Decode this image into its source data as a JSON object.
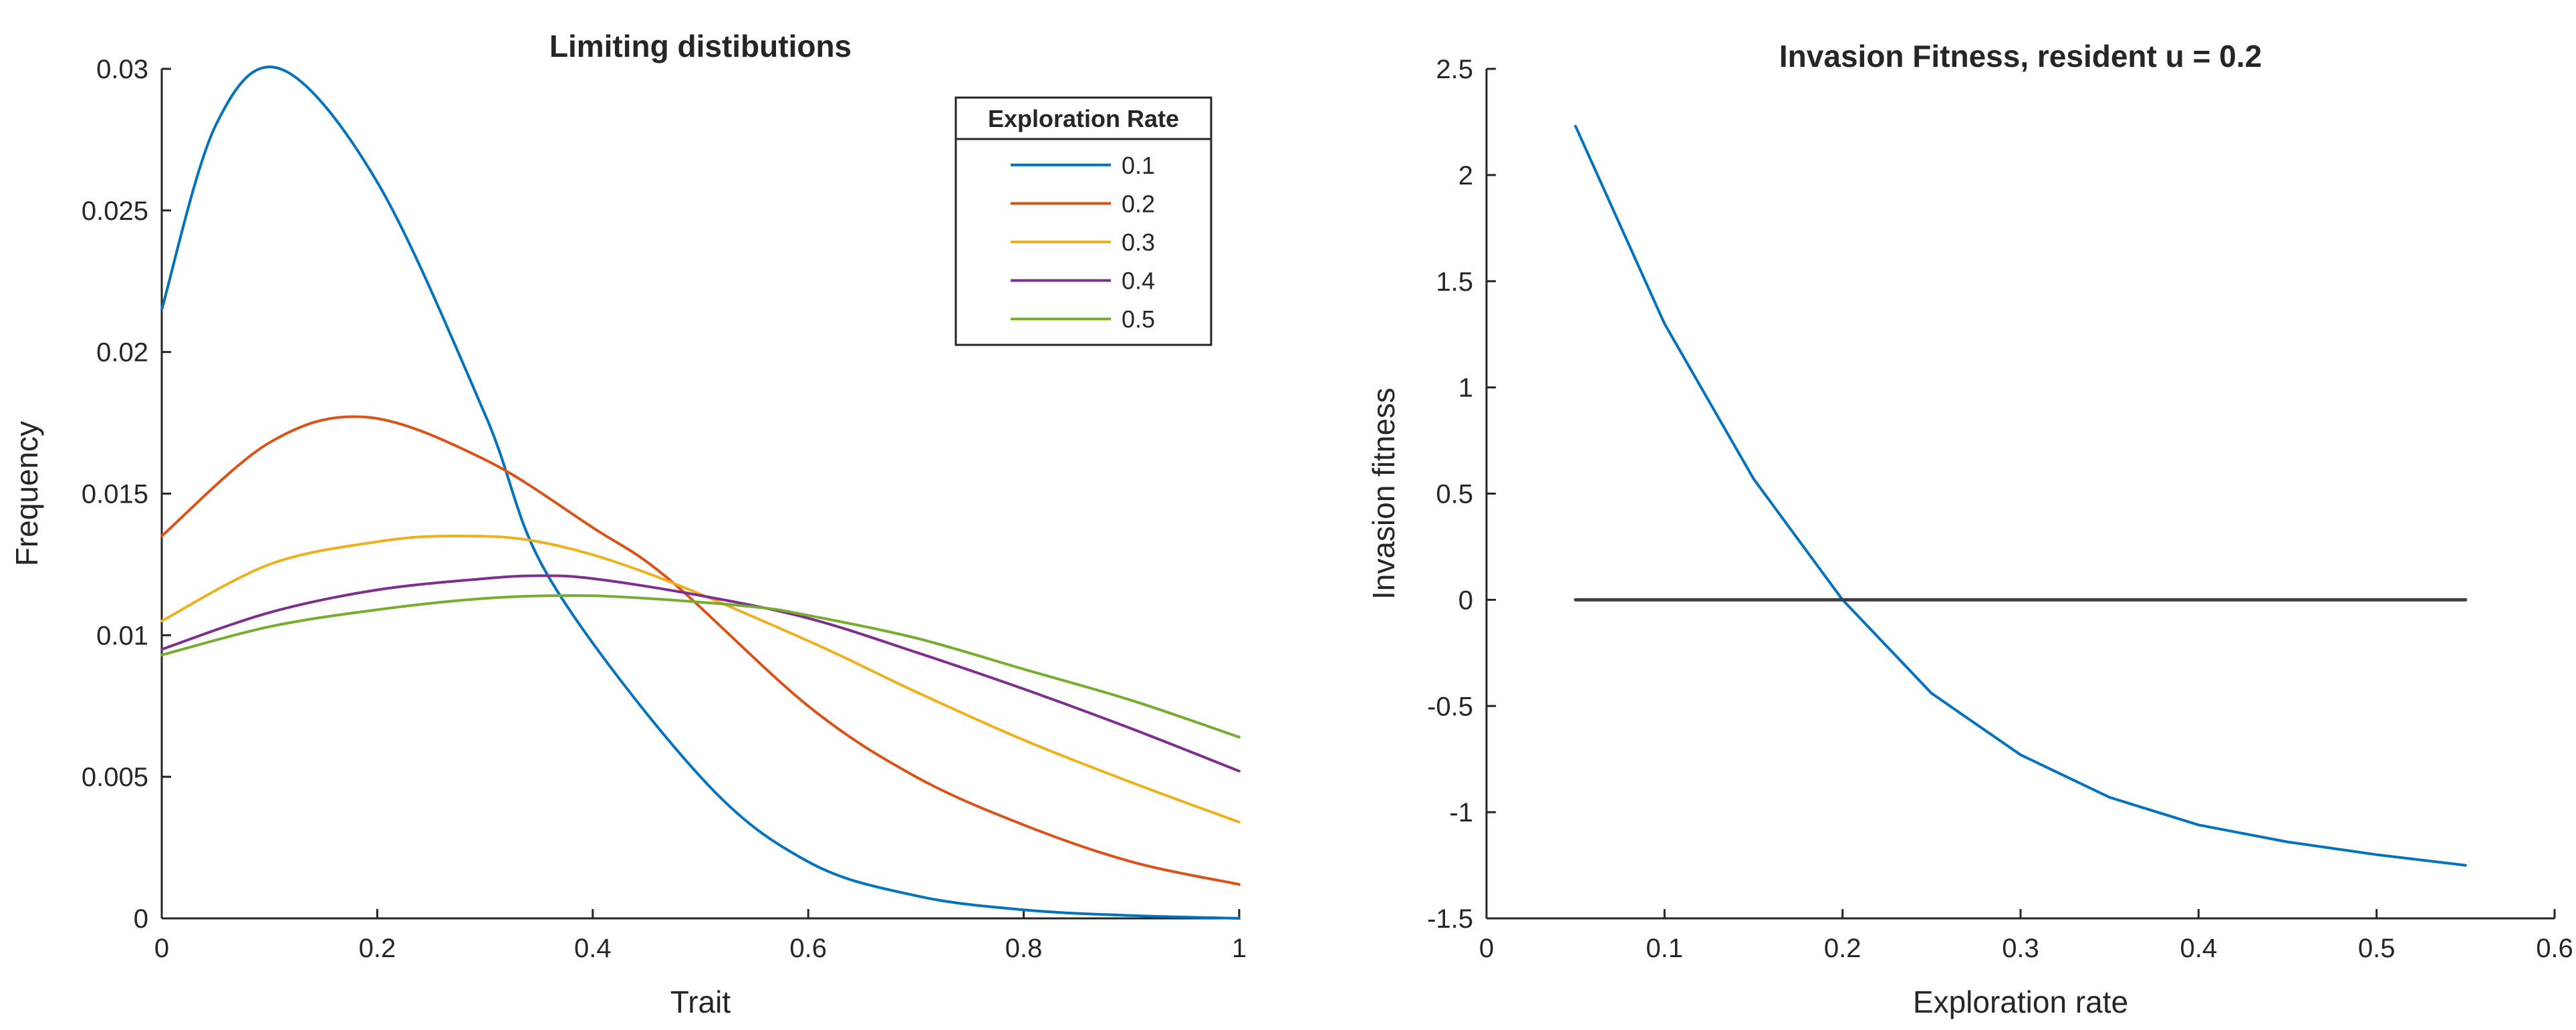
{
  "chart_data": [
    {
      "type": "line",
      "title": "Limiting distibutions",
      "xlabel": "Trait",
      "ylabel": "Frequency",
      "xlim": [
        0,
        1
      ],
      "ylim": [
        0,
        0.03
      ],
      "xticks": [
        0,
        0.2,
        0.4,
        0.6,
        0.8,
        1
      ],
      "xtick_labels": [
        "0",
        "0.2",
        "0.4",
        "0.6",
        "0.8",
        "1"
      ],
      "yticks": [
        0,
        0.005,
        0.01,
        0.015,
        0.02,
        0.025,
        0.03
      ],
      "ytick_labels": [
        "0",
        "0.005",
        "0.01",
        "0.015",
        "0.02",
        "0.025",
        "0.03"
      ],
      "legend": {
        "title": "Exploration Rate",
        "location": "top-right"
      },
      "series": [
        {
          "name": "0.1",
          "color": "#0072BD",
          "x": [
            0,
            0.05,
            0.11,
            0.2,
            0.3,
            0.36,
            0.5,
            0.6,
            0.7,
            0.8,
            0.9,
            1.0
          ],
          "y": [
            0.0215,
            0.028,
            0.03,
            0.026,
            0.0178,
            0.012,
            0.005,
            0.002,
            0.0008,
            0.0003,
            0.0001,
            0.0
          ]
        },
        {
          "name": "0.2",
          "color": "#D95319",
          "x": [
            0,
            0.1,
            0.19,
            0.3,
            0.4,
            0.47,
            0.6,
            0.7,
            0.8,
            0.9,
            1.0
          ],
          "y": [
            0.0135,
            0.0168,
            0.0177,
            0.0162,
            0.0138,
            0.012,
            0.0075,
            0.005,
            0.0033,
            0.002,
            0.0012
          ]
        },
        {
          "name": "0.3",
          "color": "#EDB120",
          "x": [
            0,
            0.1,
            0.2,
            0.27,
            0.35,
            0.45,
            0.6,
            0.7,
            0.8,
            0.9,
            1.0
          ],
          "y": [
            0.0105,
            0.0125,
            0.0133,
            0.0135,
            0.0133,
            0.0122,
            0.0098,
            0.008,
            0.0063,
            0.0048,
            0.0034
          ]
        },
        {
          "name": "0.4",
          "color": "#7E2F8E",
          "x": [
            0,
            0.1,
            0.2,
            0.3,
            0.35,
            0.4,
            0.5,
            0.6,
            0.7,
            0.8,
            0.9,
            1.0
          ],
          "y": [
            0.0095,
            0.0108,
            0.0116,
            0.012,
            0.0121,
            0.012,
            0.0114,
            0.0106,
            0.0094,
            0.0081,
            0.0067,
            0.0052
          ]
        },
        {
          "name": "0.5",
          "color": "#77AC30",
          "x": [
            0,
            0.1,
            0.2,
            0.3,
            0.38,
            0.45,
            0.55,
            0.6,
            0.7,
            0.8,
            0.9,
            1.0
          ],
          "y": [
            0.0093,
            0.0103,
            0.0109,
            0.0113,
            0.0114,
            0.0113,
            0.011,
            0.0107,
            0.0099,
            0.0088,
            0.0077,
            0.0064
          ]
        }
      ]
    },
    {
      "type": "line",
      "title": "Invasion Fitness, resident u = 0.2",
      "xlabel": "Exploration rate",
      "ylabel": "Invasion fitness",
      "xlim": [
        0,
        0.6
      ],
      "ylim": [
        -1.5,
        2.5
      ],
      "xticks": [
        0,
        0.1,
        0.2,
        0.3,
        0.4,
        0.5,
        0.6
      ],
      "xtick_labels": [
        "0",
        "0.1",
        "0.2",
        "0.3",
        "0.4",
        "0.5",
        "0.6"
      ],
      "yticks": [
        -1.5,
        -1,
        -0.5,
        0,
        0.5,
        1,
        1.5,
        2,
        2.5
      ],
      "ytick_labels": [
        "-1.5",
        "-1",
        "-0.5",
        "0",
        "0.5",
        "1",
        "1.5",
        "2",
        "2.5"
      ],
      "series": [
        {
          "name": "invasion fitness",
          "color": "#0072BD",
          "x": [
            0.05,
            0.1,
            0.15,
            0.2,
            0.25,
            0.3,
            0.35,
            0.4,
            0.45,
            0.5,
            0.55
          ],
          "y": [
            2.23,
            1.3,
            0.57,
            0.0,
            -0.44,
            -0.73,
            -0.93,
            -1.06,
            -1.14,
            -1.2,
            -1.25
          ]
        },
        {
          "name": "zero line",
          "color": "#404040",
          "x": [
            0.05,
            0.55
          ],
          "y": [
            0,
            0
          ]
        }
      ]
    }
  ]
}
